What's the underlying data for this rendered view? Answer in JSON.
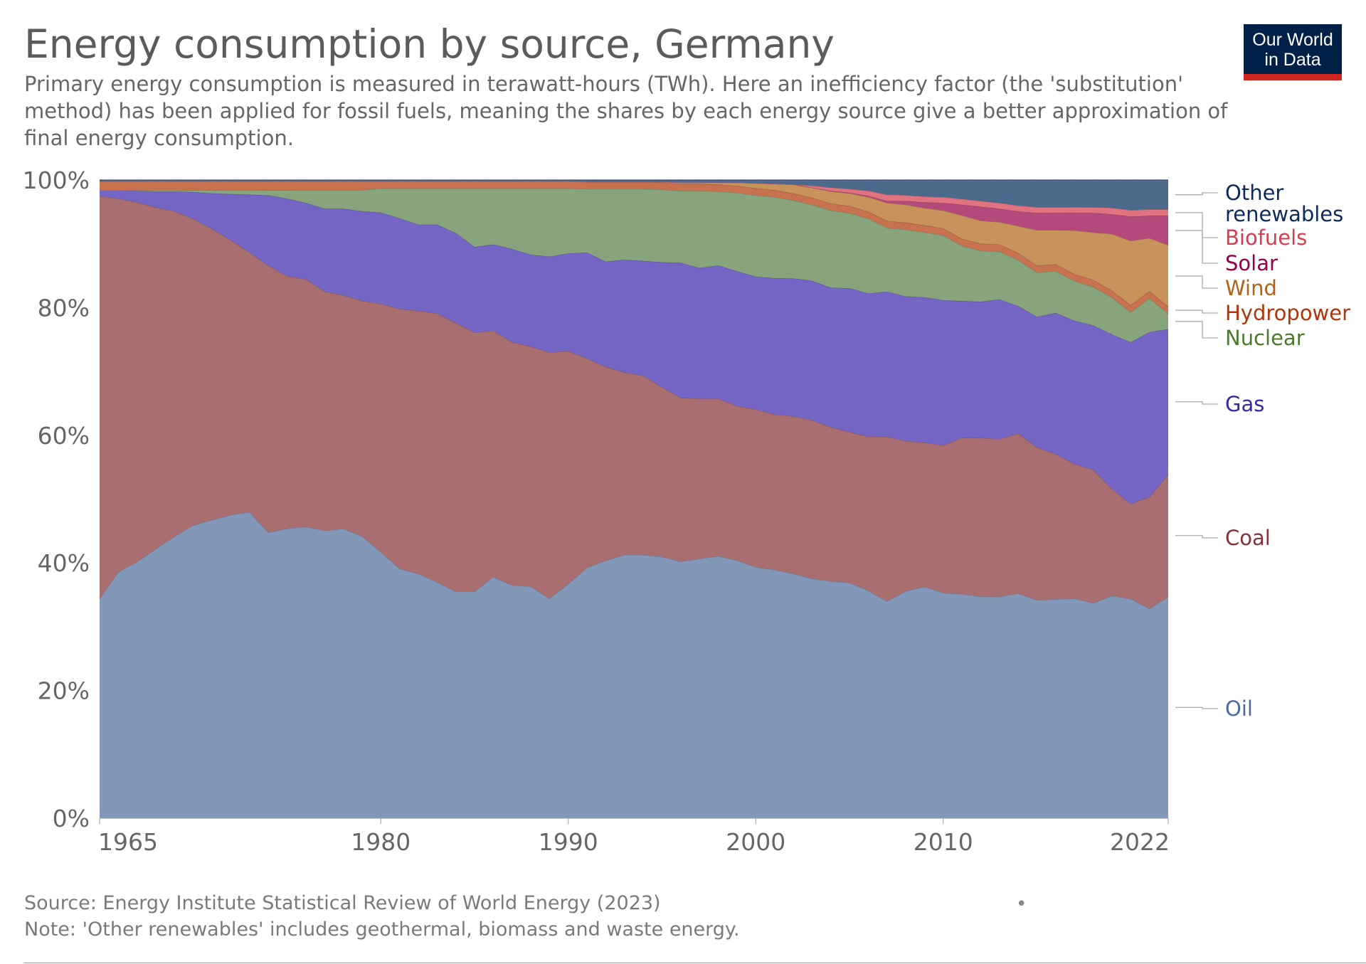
{
  "header": {
    "title": "Energy consumption by source, Germany",
    "subtitle_lines": [
      "Primary energy consumption is measured in terawatt-hours (TWh). Here an inefficiency factor (the 'substitution'",
      "method) has been applied for fossil fuels, meaning the shares by each energy source give a better approximation of",
      "final energy consumption."
    ],
    "logo_lines": [
      "Our World",
      "in Data"
    ]
  },
  "footer": {
    "source": "Source: Energy Institute Statistical Review of World Energy (2023)",
    "note": "Note: 'Other renewables' includes geothermal, biomass and waste energy.",
    "dot": "•"
  },
  "chart_data": {
    "type": "area",
    "stacked": true,
    "relative": true,
    "ylim": [
      0,
      100
    ],
    "y_ticks": [
      "0%",
      "20%",
      "40%",
      "60%",
      "80%",
      "100%"
    ],
    "x_ticks": [
      "1965",
      "1980",
      "1990",
      "2000",
      "2010",
      "2022"
    ],
    "grid": "horizontal dashed",
    "legend": "right, labels at series ends",
    "years": [
      1965,
      1966,
      1967,
      1968,
      1969,
      1970,
      1971,
      1972,
      1973,
      1974,
      1975,
      1976,
      1977,
      1978,
      1979,
      1980,
      1981,
      1982,
      1983,
      1984,
      1985,
      1986,
      1987,
      1988,
      1989,
      1990,
      1991,
      1992,
      1993,
      1994,
      1995,
      1996,
      1997,
      1998,
      1999,
      2000,
      2001,
      2002,
      2003,
      2004,
      2005,
      2006,
      2007,
      2008,
      2009,
      2010,
      2011,
      2012,
      2013,
      2014,
      2015,
      2016,
      2017,
      2018,
      2019,
      2020,
      2021,
      2022
    ],
    "series": [
      {
        "name": "Oil",
        "color": "#8397b9",
        "label_color": "#4c6a9c",
        "values": [
          34.3,
          38.5,
          40.2,
          42.3,
          44.3,
          45.9,
          47.0,
          47.8,
          48.2,
          44.7,
          45.2,
          45.8,
          45.2,
          45.5,
          44.3,
          41.7,
          39.1,
          38.3,
          37.0,
          35.5,
          35.5,
          37.8,
          36.5,
          36.3,
          34.4,
          36.7,
          39.3,
          40.4,
          41.3,
          41.3,
          41.0,
          40.3,
          40.7,
          41.1,
          40.4,
          39.5,
          39.2,
          38.5,
          37.8,
          37.4,
          37.0,
          35.9,
          34.0,
          35.7,
          36.3,
          35.4,
          35.4,
          34.8,
          34.7,
          35.1,
          34.4,
          34.6,
          34.8,
          34.0,
          35.0,
          34.2,
          32.8,
          34.6
        ]
      },
      {
        "name": "Coal",
        "color": "#a86e70",
        "label_color": "#883039",
        "values": [
          63.0,
          58.4,
          56.4,
          53.6,
          51.1,
          48.0,
          45.9,
          43.3,
          40.9,
          41.8,
          39.4,
          38.9,
          37.6,
          36.7,
          37.0,
          38.9,
          40.7,
          41.2,
          42.1,
          42.1,
          40.6,
          38.6,
          38.1,
          37.6,
          38.6,
          36.5,
          32.8,
          30.4,
          28.6,
          28.1,
          26.6,
          25.7,
          25.1,
          24.7,
          24.2,
          24.8,
          24.5,
          24.8,
          25.0,
          24.3,
          23.7,
          24.3,
          25.8,
          23.6,
          22.6,
          23.2,
          24.7,
          24.9,
          24.7,
          25.0,
          24.1,
          22.9,
          21.3,
          21.1,
          16.8,
          14.8,
          17.5,
          19.1
        ]
      },
      {
        "name": "Gas",
        "color": "#7566c5",
        "label_color": "#3629a4",
        "values": [
          0.9,
          1.3,
          1.8,
          2.5,
          3.1,
          4.2,
          5.6,
          7.3,
          9.1,
          11.0,
          12.1,
          12.0,
          13.0,
          13.6,
          14.1,
          14.3,
          14.2,
          13.5,
          13.9,
          14.1,
          13.4,
          13.5,
          14.6,
          14.4,
          15.0,
          15.3,
          16.6,
          16.5,
          17.7,
          18.0,
          19.6,
          21.2,
          20.5,
          20.9,
          21.1,
          20.9,
          21.5,
          21.7,
          22.0,
          22.0,
          22.6,
          22.6,
          22.8,
          22.7,
          22.8,
          22.8,
          21.6,
          21.4,
          21.9,
          19.9,
          20.6,
          22.3,
          22.7,
          22.8,
          24.3,
          25.2,
          25.8,
          22.7
        ]
      },
      {
        "name": "Nuclear",
        "color": "#88a47c",
        "label_color": "#4c7a2c",
        "values": [
          0,
          0,
          0.1,
          0.2,
          0.2,
          0.3,
          0.5,
          0.6,
          0.7,
          0.8,
          1.3,
          2.0,
          2.9,
          2.9,
          3.3,
          3.8,
          4.7,
          5.7,
          5.7,
          7.0,
          9.2,
          8.8,
          9.5,
          10.4,
          10.7,
          10.2,
          10.0,
          11.4,
          11.1,
          11.3,
          11.4,
          11.3,
          12.1,
          11.6,
          12.3,
          12.8,
          12.8,
          12.3,
          12.0,
          12.2,
          11.8,
          11.8,
          10.0,
          10.5,
          10.2,
          10.2,
          8.7,
          8.0,
          7.5,
          7.2,
          7.0,
          6.6,
          6.3,
          6.1,
          5.8,
          4.7,
          5.3,
          2.4
        ]
      },
      {
        "name": "Hydropower",
        "color": "#c7714f",
        "label_color": "#b13507",
        "values": [
          1.4,
          1.4,
          1.4,
          1.4,
          1.4,
          1.4,
          1.4,
          1.4,
          1.4,
          1.4,
          1.4,
          1.4,
          1.4,
          1.4,
          1.4,
          1.1,
          1.1,
          1.1,
          1.1,
          1.1,
          1.1,
          1.1,
          1.1,
          1.1,
          1.1,
          1.1,
          1.1,
          1.1,
          1.1,
          1.1,
          1.1,
          1.1,
          1.1,
          1.1,
          1.1,
          1.1,
          1.1,
          1.1,
          1.1,
          1.1,
          1.1,
          1.1,
          1.1,
          1.1,
          1.1,
          1.1,
          1.1,
          1.1,
          1.1,
          1.1,
          1.1,
          1.1,
          1.1,
          1.1,
          1.1,
          1.1,
          1.1,
          1.1
        ]
      },
      {
        "name": "Wind",
        "color": "#c8935a",
        "label_color": "#b16214",
        "values": [
          0,
          0,
          0,
          0,
          0,
          0,
          0,
          0,
          0,
          0,
          0,
          0,
          0,
          0,
          0,
          0,
          0,
          0,
          0,
          0,
          0,
          0,
          0,
          0,
          0,
          0,
          0,
          0,
          0,
          0,
          0.1,
          0.2,
          0.2,
          0.3,
          0.5,
          0.8,
          1.0,
          1.4,
          1.6,
          1.9,
          2.0,
          2.3,
          2.8,
          2.8,
          2.7,
          2.8,
          3.7,
          3.6,
          3.5,
          4.2,
          5.6,
          5.4,
          6.9,
          7.5,
          8.9,
          10.0,
          8.3,
          9.6
        ]
      },
      {
        "name": "Solar",
        "color": "#b44a7c",
        "label_color": "#970046",
        "values": [
          0,
          0,
          0,
          0,
          0,
          0,
          0,
          0,
          0,
          0,
          0,
          0,
          0,
          0,
          0,
          0,
          0,
          0,
          0,
          0,
          0,
          0,
          0,
          0,
          0,
          0,
          0,
          0,
          0,
          0,
          0,
          0,
          0,
          0,
          0,
          0,
          0,
          0,
          0,
          0.1,
          0.1,
          0.2,
          0.3,
          0.6,
          0.9,
          1.2,
          1.7,
          2.2,
          2.1,
          2.3,
          2.7,
          2.7,
          2.8,
          3.1,
          3.1,
          3.8,
          3.5,
          4.6
        ]
      },
      {
        "name": "Biofuels",
        "color": "#e0737f",
        "label_color": "#d73c50",
        "values": [
          0,
          0,
          0,
          0,
          0,
          0,
          0,
          0,
          0,
          0,
          0,
          0,
          0,
          0,
          0,
          0,
          0,
          0,
          0,
          0,
          0,
          0,
          0,
          0,
          0,
          0,
          0,
          0,
          0,
          0,
          0,
          0,
          0,
          0,
          0,
          0,
          0,
          0,
          0.3,
          0.5,
          0.6,
          0.8,
          1.0,
          0.9,
          0.9,
          0.9,
          0.9,
          0.9,
          0.9,
          0.9,
          0.9,
          0.9,
          0.9,
          0.9,
          1.0,
          1.0,
          1.0,
          1.0
        ]
      },
      {
        "name": "Other renewables",
        "label_lines": [
          "Other",
          "renewables"
        ],
        "color": "#4c6a8c",
        "label_color": "#0c2a5a",
        "values": [
          0.2,
          0.2,
          0.2,
          0.2,
          0.2,
          0.2,
          0.2,
          0.2,
          0.2,
          0.2,
          0.2,
          0.2,
          0.2,
          0.2,
          0.2,
          0.2,
          0.2,
          0.2,
          0.2,
          0.2,
          0.2,
          0.2,
          0.2,
          0.2,
          0.2,
          0.2,
          0.3,
          0.3,
          0.3,
          0.3,
          0.3,
          0.4,
          0.4,
          0.4,
          0.4,
          0.5,
          0.6,
          0.7,
          0.9,
          1.2,
          1.4,
          1.7,
          2.3,
          2.4,
          2.6,
          2.7,
          3.0,
          3.3,
          3.6,
          4.0,
          4.3,
          4.3,
          4.3,
          4.3,
          4.4,
          4.7,
          4.6,
          4.6
        ]
      }
    ]
  }
}
